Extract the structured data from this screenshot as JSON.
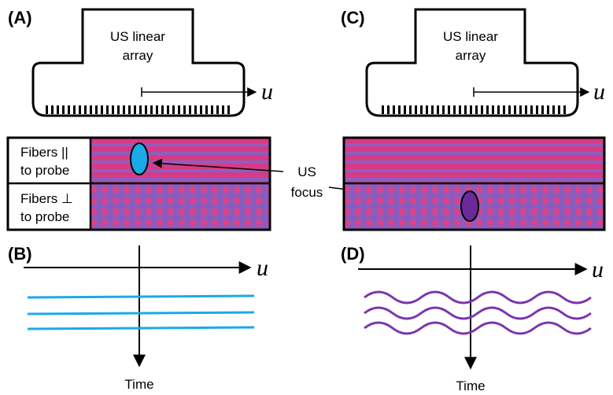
{
  "panel_labels": [
    "(A)",
    "(B)",
    "(C)",
    "(D)"
  ],
  "probe_label": {
    "A": [
      "US linear",
      "array"
    ],
    "C": [
      "US linear",
      "array"
    ]
  },
  "axis_labels": [
    "u",
    "u",
    "u",
    "u"
  ],
  "fibers_parallel": [
    "Fibers ||",
    "to probe"
  ],
  "fibers_perpendicular": [
    "Fibers ⊥",
    "to probe"
  ],
  "focus_label": [
    "US",
    "focus"
  ],
  "time_labels": [
    "Time",
    "Time"
  ]
}
